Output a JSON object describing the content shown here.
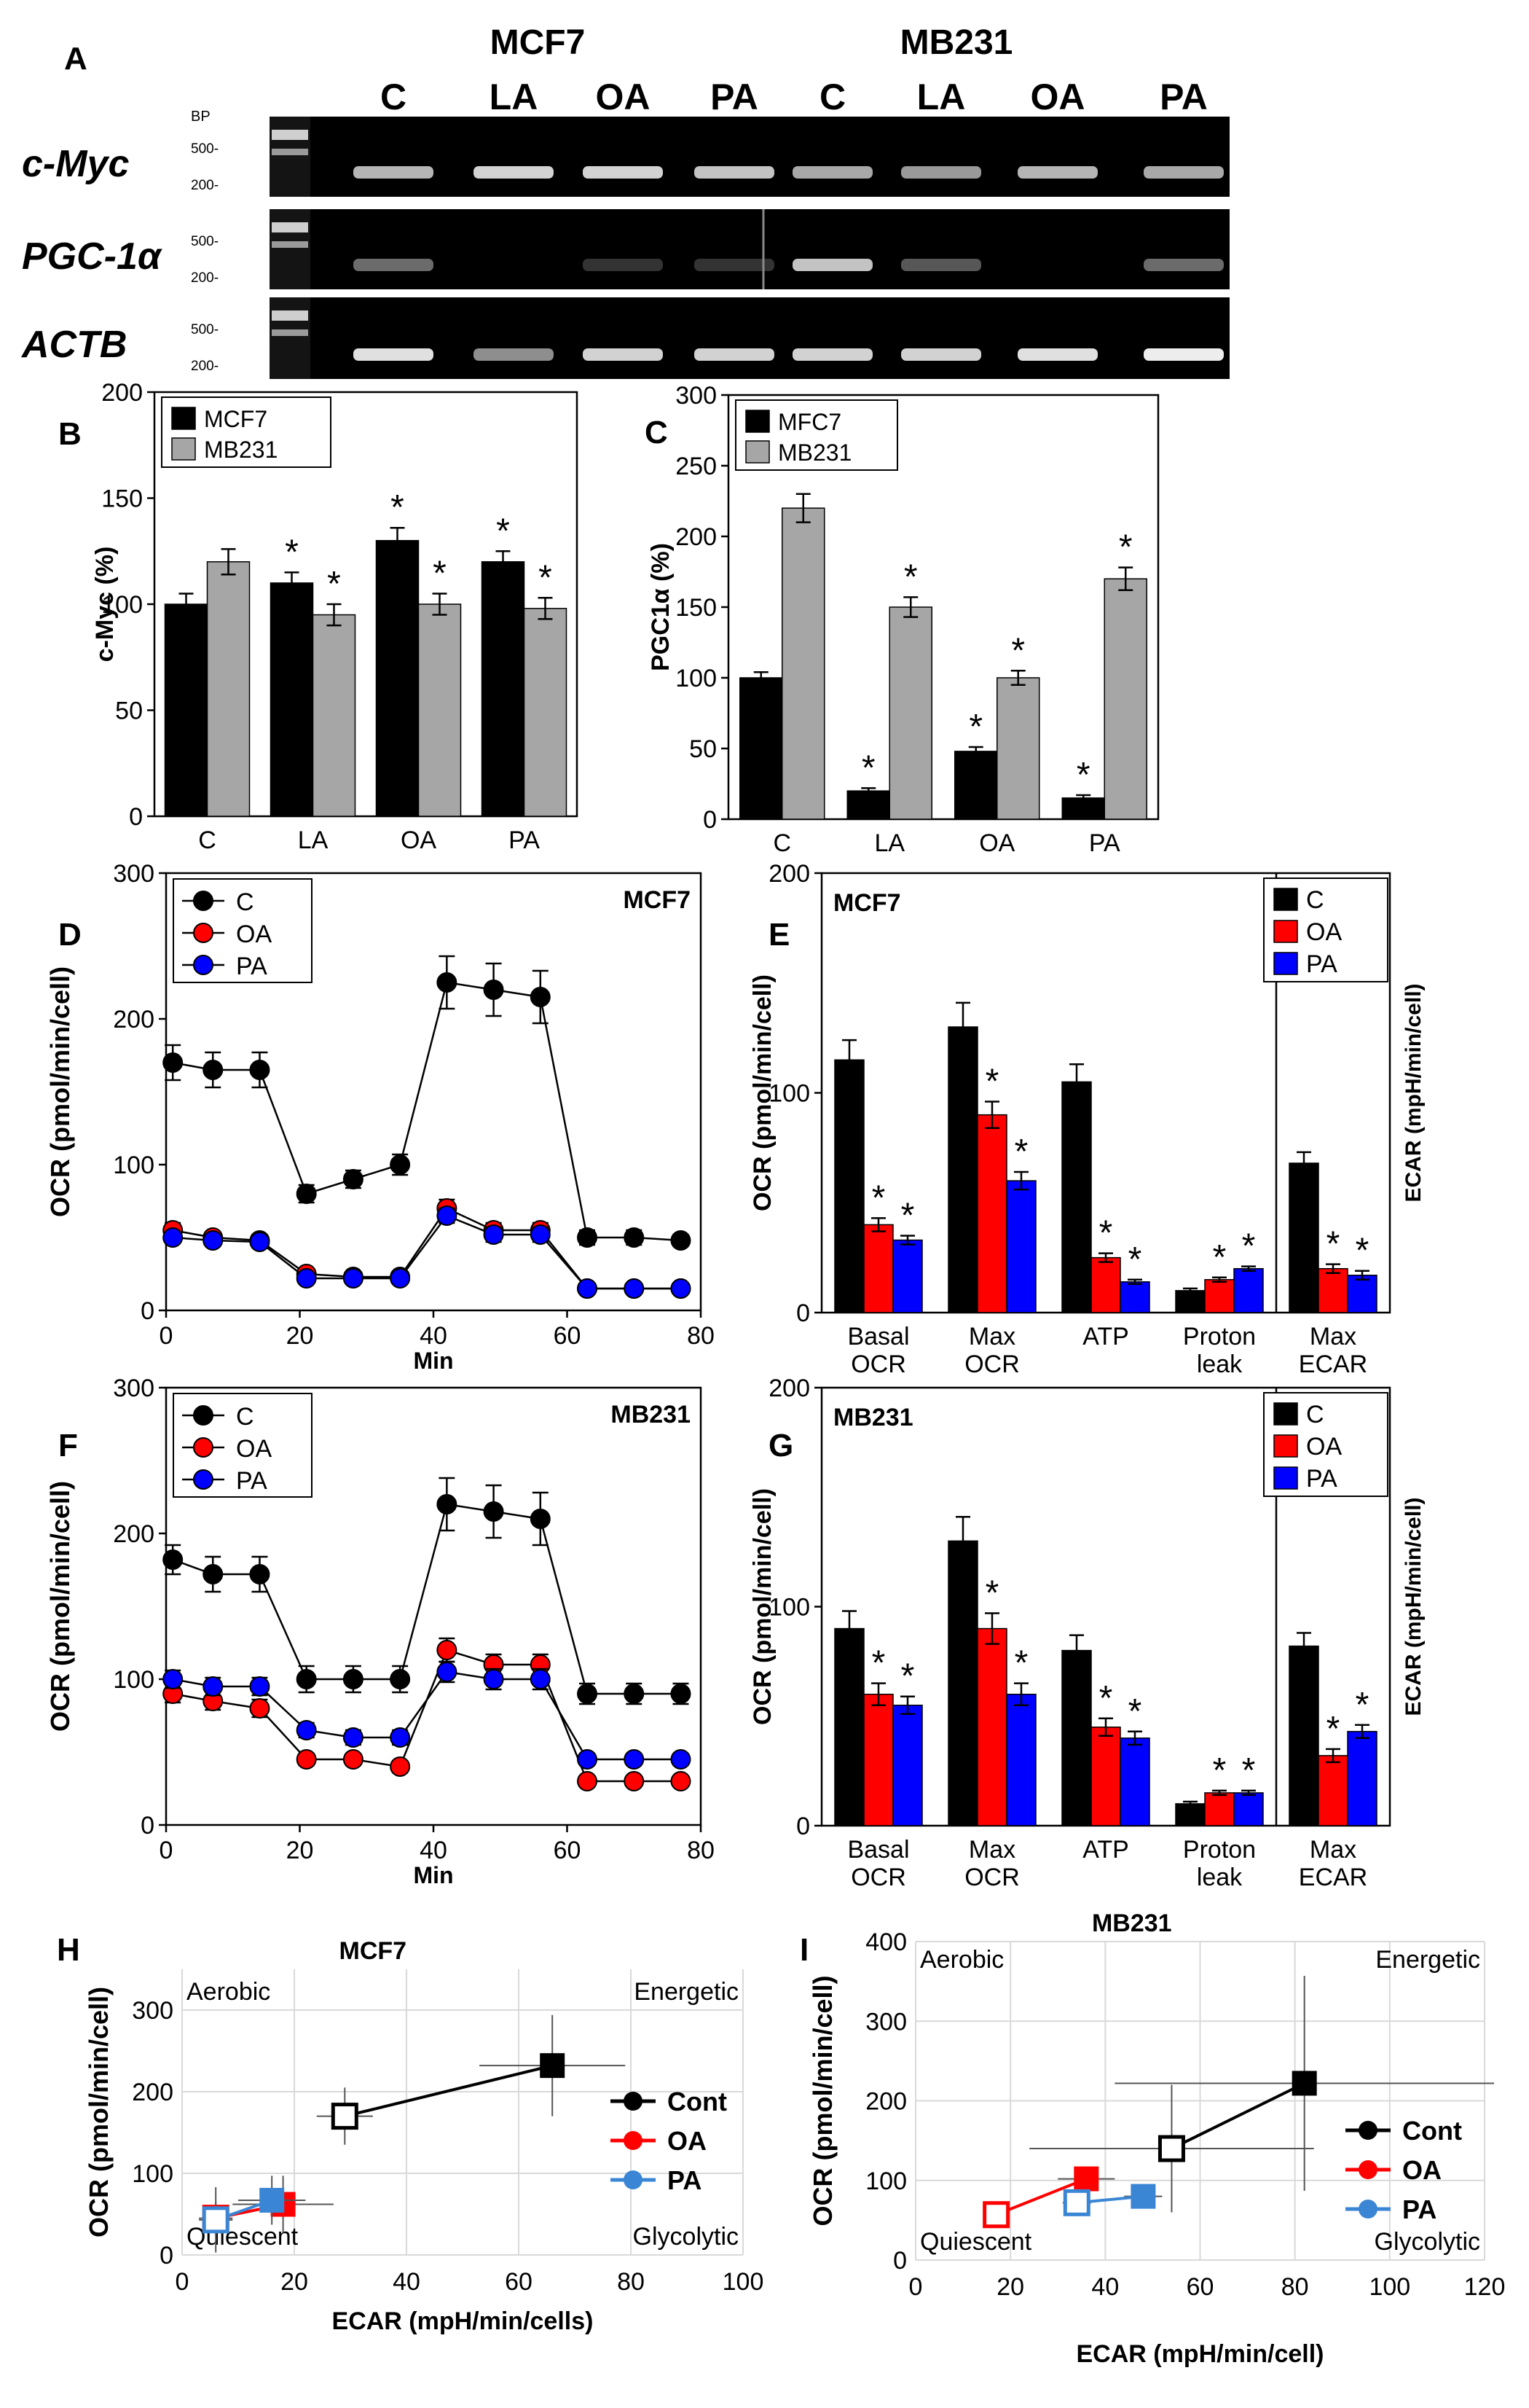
{
  "chart_data": [
    {
      "panel": "A",
      "type": "gel",
      "groups": [
        {
          "name": "MCF7",
          "lanes": [
            "C",
            "LA",
            "OA",
            "PA"
          ]
        },
        {
          "name": "MB231",
          "lanes": [
            "C",
            "LA",
            "OA",
            "PA"
          ]
        }
      ],
      "bp_label": "BP",
      "marker_labels": [
        "500-",
        "200-"
      ],
      "genes": [
        {
          "name": "c-Myc",
          "intensity": [
            0.75,
            0.85,
            0.85,
            0.8,
            0.7,
            0.65,
            0.75,
            0.7
          ]
        },
        {
          "name": "PGC-1α",
          "intensity": [
            0.45,
            0.0,
            0.15,
            0.15,
            0.8,
            0.35,
            0.0,
            0.45
          ]
        },
        {
          "name": "ACTB",
          "intensity": [
            0.9,
            0.6,
            0.85,
            0.85,
            0.85,
            0.85,
            0.9,
            0.95
          ]
        }
      ]
    },
    {
      "panel": "B",
      "type": "bar",
      "ylabel": "c-Myc (%)",
      "ylim": [
        0,
        200
      ],
      "yticks": [
        0,
        50,
        100,
        150,
        200
      ],
      "categories": [
        "C",
        "LA",
        "OA",
        "PA"
      ],
      "series": [
        {
          "name": "MCF7",
          "color": "#000000",
          "values": [
            100,
            110,
            130,
            120
          ],
          "errors": [
            5,
            5,
            6,
            5
          ],
          "sig": [
            false,
            true,
            true,
            true
          ]
        },
        {
          "name": "MB231",
          "color": "#a6a6a6",
          "values": [
            120,
            95,
            100,
            98
          ],
          "errors": [
            6,
            5,
            5,
            5
          ],
          "sig": [
            false,
            true,
            true,
            true
          ]
        }
      ]
    },
    {
      "panel": "C",
      "type": "bar",
      "ylabel": "PGC1α (%)",
      "ylim": [
        0,
        300
      ],
      "yticks": [
        0,
        50,
        100,
        150,
        200,
        250,
        300
      ],
      "categories": [
        "C",
        "LA",
        "OA",
        "PA"
      ],
      "series": [
        {
          "name": "MFC7",
          "color": "#000000",
          "values": [
            100,
            20,
            48,
            15
          ],
          "errors": [
            4,
            2,
            3,
            2
          ],
          "sig": [
            false,
            true,
            true,
            true
          ]
        },
        {
          "name": "MB231",
          "color": "#a6a6a6",
          "values": [
            220,
            150,
            100,
            170
          ],
          "errors": [
            10,
            7,
            5,
            8
          ],
          "sig": [
            false,
            true,
            true,
            true
          ]
        }
      ]
    },
    {
      "panel": "D",
      "type": "line",
      "title": "MCF7",
      "xlabel": "Min",
      "ylabel": "OCR (pmol/min/cell)",
      "xlim": [
        0,
        80
      ],
      "ylim": [
        0,
        300
      ],
      "xticks": [
        0,
        20,
        40,
        60,
        80
      ],
      "yticks": [
        0,
        100,
        200,
        300
      ],
      "x": [
        1,
        7,
        14,
        21,
        28,
        35,
        42,
        49,
        56,
        63,
        70,
        77
      ],
      "series": [
        {
          "name": "C",
          "color": "#000000",
          "values": [
            170,
            165,
            165,
            80,
            90,
            100,
            225,
            220,
            215,
            50,
            50,
            48
          ],
          "errors": [
            12,
            12,
            12,
            6,
            6,
            7,
            18,
            18,
            18,
            5,
            5,
            4
          ]
        },
        {
          "name": "OA",
          "color": "#ff0000",
          "values": [
            55,
            50,
            48,
            25,
            23,
            23,
            70,
            55,
            55,
            15,
            15,
            15
          ],
          "errors": [
            5,
            4,
            4,
            3,
            3,
            3,
            6,
            5,
            5,
            2,
            2,
            2
          ]
        },
        {
          "name": "PA",
          "color": "#0000ff",
          "values": [
            50,
            48,
            47,
            22,
            22,
            22,
            65,
            52,
            52,
            15,
            15,
            15
          ],
          "errors": [
            4,
            4,
            4,
            3,
            3,
            3,
            5,
            5,
            5,
            2,
            2,
            2
          ]
        }
      ]
    },
    {
      "panel": "E",
      "type": "bar",
      "title": "MCF7",
      "ylabel": "OCR (pmol/min/cell)",
      "y2label": "ECAR (mpH/min/cell)",
      "ylim": [
        0,
        200
      ],
      "yticks": [
        0,
        100,
        200
      ],
      "categories": [
        [
          "Basal",
          "OCR"
        ],
        [
          "Max",
          "OCR"
        ],
        [
          "ATP"
        ],
        [
          "Proton",
          "leak"
        ],
        [
          "Max",
          "ECAR"
        ]
      ],
      "series": [
        {
          "name": "C",
          "color": "#000000",
          "values": [
            115,
            130,
            105,
            10,
            68
          ],
          "errors": [
            9,
            11,
            8,
            1,
            5
          ],
          "sig": [
            false,
            false,
            false,
            false,
            false
          ]
        },
        {
          "name": "OA",
          "color": "#ff0000",
          "values": [
            40,
            90,
            25,
            15,
            20
          ],
          "errors": [
            3,
            6,
            2,
            1,
            2
          ],
          "sig": [
            true,
            true,
            true,
            true,
            true
          ]
        },
        {
          "name": "PA",
          "color": "#0000ff",
          "values": [
            33,
            60,
            14,
            20,
            17
          ],
          "errors": [
            2,
            4,
            1,
            1,
            2
          ],
          "sig": [
            true,
            true,
            true,
            true,
            true
          ]
        }
      ]
    },
    {
      "panel": "F",
      "type": "line",
      "title": "MB231",
      "xlabel": "Min",
      "ylabel": "OCR (pmol/min/cell)",
      "xlim": [
        0,
        80
      ],
      "ylim": [
        0,
        300
      ],
      "xticks": [
        0,
        20,
        40,
        60,
        80
      ],
      "yticks": [
        0,
        100,
        200,
        300
      ],
      "x": [
        1,
        7,
        14,
        21,
        28,
        35,
        42,
        49,
        56,
        63,
        70,
        77
      ],
      "series": [
        {
          "name": "C",
          "color": "#000000",
          "values": [
            182,
            172,
            172,
            100,
            100,
            100,
            220,
            215,
            210,
            90,
            90,
            90
          ],
          "errors": [
            10,
            12,
            12,
            9,
            9,
            9,
            18,
            18,
            18,
            7,
            7,
            7
          ]
        },
        {
          "name": "OA",
          "color": "#ff0000",
          "values": [
            90,
            85,
            80,
            45,
            45,
            40,
            120,
            110,
            110,
            30,
            30,
            30
          ],
          "errors": [
            6,
            6,
            6,
            4,
            4,
            4,
            8,
            7,
            7,
            3,
            3,
            3
          ]
        },
        {
          "name": "PA",
          "color": "#0000ff",
          "values": [
            100,
            95,
            95,
            65,
            60,
            60,
            105,
            100,
            100,
            45,
            45,
            45
          ],
          "errors": [
            6,
            6,
            6,
            5,
            5,
            5,
            7,
            7,
            7,
            4,
            4,
            4
          ]
        }
      ]
    },
    {
      "panel": "G",
      "type": "bar",
      "title": "MB231",
      "ylabel": "OCR (pmol/min/cell)",
      "y2label": "ECAR (mpH/min/cell)",
      "ylim": [
        0,
        200
      ],
      "yticks": [
        0,
        100,
        200
      ],
      "categories": [
        [
          "Basal",
          "OCR"
        ],
        [
          "Max",
          "OCR"
        ],
        [
          "ATP"
        ],
        [
          "Proton",
          "leak"
        ],
        [
          "Max",
          "ECAR"
        ]
      ],
      "series": [
        {
          "name": "C",
          "color": "#000000",
          "values": [
            90,
            130,
            80,
            10,
            82
          ],
          "errors": [
            8,
            11,
            7,
            1,
            6
          ],
          "sig": [
            false,
            false,
            false,
            false,
            false
          ]
        },
        {
          "name": "OA",
          "color": "#ff0000",
          "values": [
            60,
            90,
            45,
            15,
            32
          ],
          "errors": [
            5,
            7,
            4,
            1,
            3
          ],
          "sig": [
            true,
            true,
            true,
            true,
            true
          ]
        },
        {
          "name": "PA",
          "color": "#0000ff",
          "values": [
            55,
            60,
            40,
            15,
            43
          ],
          "errors": [
            4,
            5,
            3,
            1,
            3
          ],
          "sig": [
            true,
            true,
            true,
            true,
            true
          ]
        }
      ]
    },
    {
      "panel": "H",
      "type": "scatter",
      "title": "MCF7",
      "xlabel": "ECAR (mpH/min/cells)",
      "ylabel": "OCR (pmol/min/cell)",
      "xlim": [
        0,
        100
      ],
      "ylim": [
        0,
        350
      ],
      "xticks": [
        0,
        20,
        40,
        60,
        80,
        100
      ],
      "yticks": [
        0,
        100,
        200,
        300
      ],
      "quadrants": {
        "top_left": "Aerobic",
        "top_right": "Energetic",
        "bottom_left": "Quiescent",
        "bottom_right": "Glycolytic"
      },
      "series": [
        {
          "name": "Cont",
          "color": "#000000",
          "open": {
            "x": 29,
            "y": 170,
            "xerr": 5,
            "yerr": 35
          },
          "closed": {
            "x": 66,
            "y": 232,
            "xerr": 13,
            "yerr": 62
          }
        },
        {
          "name": "OA",
          "color": "#ff0000",
          "open": {
            "x": 6,
            "y": 45,
            "xerr": 3,
            "yerr": 20
          },
          "closed": {
            "x": 18,
            "y": 62,
            "xerr": 9,
            "yerr": 35
          }
        },
        {
          "name": "PA",
          "color": "#3b86d4",
          "open": {
            "x": 6,
            "y": 43,
            "xerr": 3,
            "yerr": 40
          },
          "closed": {
            "x": 16,
            "y": 67,
            "xerr": 6,
            "yerr": 30
          }
        }
      ]
    },
    {
      "panel": "I",
      "type": "scatter",
      "title": "MB231",
      "xlabel": "ECAR (mpH/min/cell)",
      "ylabel": "OCR (pmol/min/cell)",
      "xlim": [
        0,
        120
      ],
      "ylim": [
        0,
        400
      ],
      "xticks": [
        0,
        20,
        40,
        60,
        80,
        100,
        120
      ],
      "yticks": [
        0,
        100,
        200,
        300,
        400
      ],
      "quadrants": {
        "top_left": "Aerobic",
        "top_right": "Energetic",
        "bottom_left": "Quiescent",
        "bottom_right": "Glycolytic"
      },
      "series": [
        {
          "name": "Cont",
          "color": "#000000",
          "open": {
            "x": 54,
            "y": 140,
            "xerr": 30,
            "yerr": 80
          },
          "closed": {
            "x": 82,
            "y": 222,
            "xerr": 40,
            "yerr": 135
          }
        },
        {
          "name": "OA",
          "color": "#ff0000",
          "open": {
            "x": 17,
            "y": 57,
            "xerr": 2,
            "yerr": 5
          },
          "closed": {
            "x": 36,
            "y": 102,
            "xerr": 6,
            "yerr": 12
          }
        },
        {
          "name": "PA",
          "color": "#3b86d4",
          "open": {
            "x": 34,
            "y": 72,
            "xerr": 3,
            "yerr": 8
          },
          "closed": {
            "x": 48,
            "y": 80,
            "xerr": 4,
            "yerr": 8
          }
        }
      ]
    }
  ]
}
